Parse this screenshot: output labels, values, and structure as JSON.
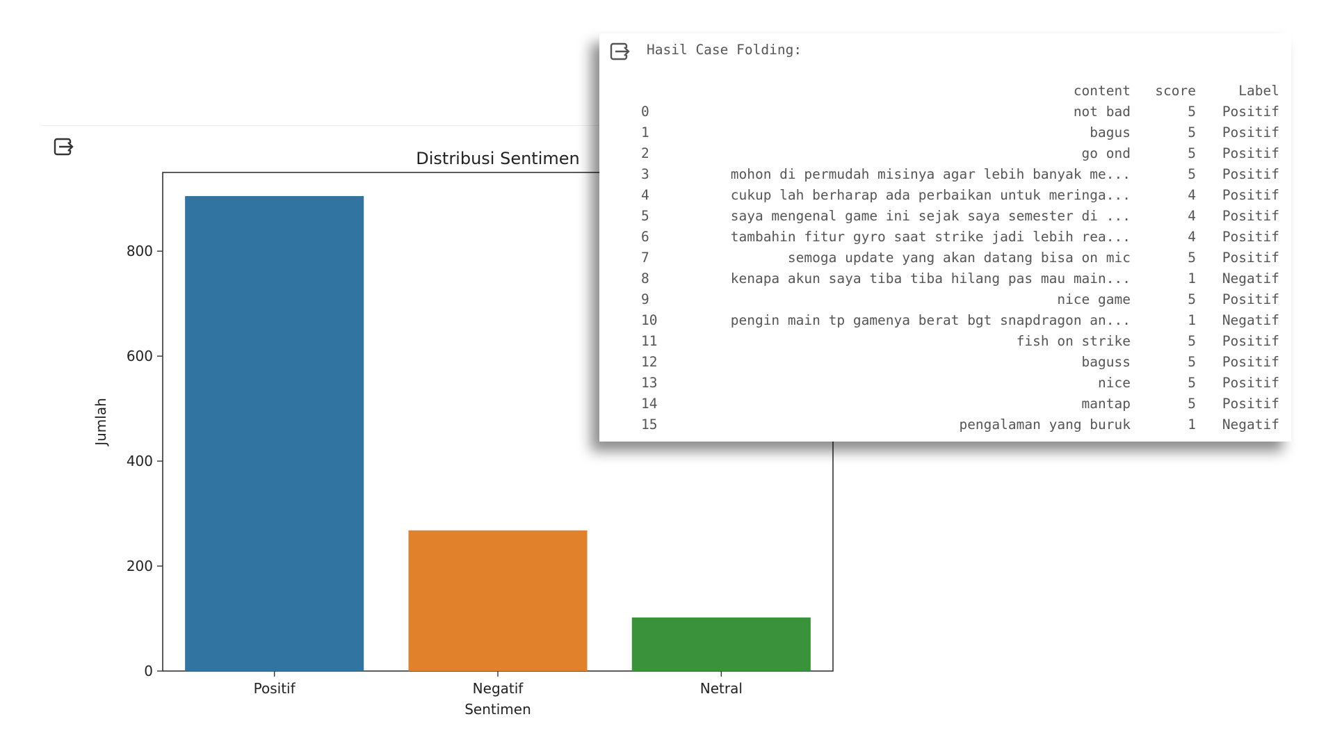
{
  "chart_cell": {
    "output_icon": "output-arrow-icon"
  },
  "chart_data": {
    "type": "bar",
    "title": "Distribusi Sentimen",
    "xlabel": "Sentimen",
    "ylabel": "Jumlah",
    "categories": [
      "Positif",
      "Negatif",
      "Netral"
    ],
    "values": [
      905,
      268,
      102
    ],
    "colors": [
      "#3274a1",
      "#e1812c",
      "#3a923a"
    ],
    "ylim": [
      0,
      950
    ],
    "yticks": [
      0,
      200,
      400,
      600,
      800
    ],
    "grid": false
  },
  "text_cell": {
    "output_icon": "output-arrow-icon",
    "title": "Hasil Case Folding:",
    "columns": [
      "",
      "content",
      "score",
      "Label"
    ],
    "rows": [
      {
        "idx": "0",
        "content": "not bad",
        "score": "5",
        "label": "Positif"
      },
      {
        "idx": "1",
        "content": "bagus",
        "score": "5",
        "label": "Positif"
      },
      {
        "idx": "2",
        "content": "go ond",
        "score": "5",
        "label": "Positif"
      },
      {
        "idx": "3",
        "content": "mohon di permudah misinya agar lebih banyak me...",
        "score": "5",
        "label": "Positif"
      },
      {
        "idx": "4",
        "content": "cukup lah berharap ada perbaikan untuk meringa...",
        "score": "4",
        "label": "Positif"
      },
      {
        "idx": "5",
        "content": "saya mengenal game ini sejak saya semester di ...",
        "score": "4",
        "label": "Positif"
      },
      {
        "idx": "6",
        "content": "tambahin fitur gyro saat strike jadi lebih rea...",
        "score": "4",
        "label": "Positif"
      },
      {
        "idx": "7",
        "content": "semoga update yang akan datang bisa on mic",
        "score": "5",
        "label": "Positif"
      },
      {
        "idx": "8",
        "content": "kenapa akun saya tiba tiba hilang pas mau main...",
        "score": "1",
        "label": "Negatif"
      },
      {
        "idx": "9",
        "content": "nice game",
        "score": "5",
        "label": "Positif"
      },
      {
        "idx": "10",
        "content": "pengin main tp gamenya berat bgt snapdragon an...",
        "score": "1",
        "label": "Negatif"
      },
      {
        "idx": "11",
        "content": "fish on strike",
        "score": "5",
        "label": "Positif"
      },
      {
        "idx": "12",
        "content": "baguss",
        "score": "5",
        "label": "Positif"
      },
      {
        "idx": "13",
        "content": "nice",
        "score": "5",
        "label": "Positif"
      },
      {
        "idx": "14",
        "content": "mantap",
        "score": "5",
        "label": "Positif"
      },
      {
        "idx": "15",
        "content": "pengalaman yang buruk",
        "score": "1",
        "label": "Negatif"
      }
    ]
  }
}
